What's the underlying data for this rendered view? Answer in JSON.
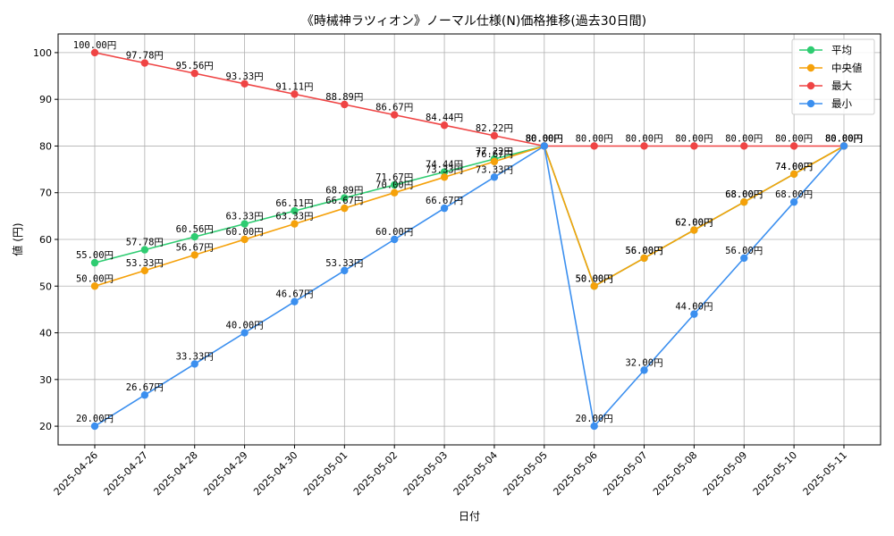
{
  "chart_data": {
    "type": "line",
    "title": "《時械神ラツィオン》ノーマル仕様(N)価格推移(過去30日間)",
    "xlabel": "日付",
    "ylabel": "値 (円)",
    "ylim": [
      16,
      104
    ],
    "yticks": [
      20,
      30,
      40,
      50,
      60,
      70,
      80,
      90,
      100
    ],
    "grid": true,
    "legend_position": "top-right",
    "value_suffix": "円",
    "categories": [
      "2025-04-26",
      "2025-04-27",
      "2025-04-28",
      "2025-04-29",
      "2025-04-30",
      "2025-05-01",
      "2025-05-02",
      "2025-05-03",
      "2025-05-04",
      "2025-05-05",
      "2025-05-06",
      "2025-05-07",
      "2025-05-08",
      "2025-05-09",
      "2025-05-10",
      "2025-05-11"
    ],
    "series": [
      {
        "name": "平均",
        "color": "#2ecc71",
        "values": [
          55.0,
          57.78,
          60.56,
          63.33,
          66.11,
          68.89,
          71.67,
          74.44,
          77.22,
          80.0,
          50.0,
          56.0,
          62.0,
          68.0,
          74.0,
          80.0
        ]
      },
      {
        "name": "中央値",
        "color": "#f5a10a",
        "values": [
          50.0,
          53.33,
          56.67,
          60.0,
          63.33,
          66.67,
          70.0,
          73.33,
          76.67,
          80.0,
          50.0,
          56.0,
          62.0,
          68.0,
          74.0,
          80.0
        ]
      },
      {
        "name": "最大",
        "color": "#ef4444",
        "values": [
          100.0,
          97.78,
          95.56,
          93.33,
          91.11,
          88.89,
          86.67,
          84.44,
          82.22,
          80.0,
          80.0,
          80.0,
          80.0,
          80.0,
          80.0,
          80.0
        ]
      },
      {
        "name": "最小",
        "color": "#3b8fef",
        "values": [
          20.0,
          26.67,
          33.33,
          40.0,
          46.67,
          53.33,
          60.0,
          66.67,
          73.33,
          80.0,
          20.0,
          32.0,
          44.0,
          56.0,
          68.0,
          80.0
        ]
      }
    ]
  }
}
